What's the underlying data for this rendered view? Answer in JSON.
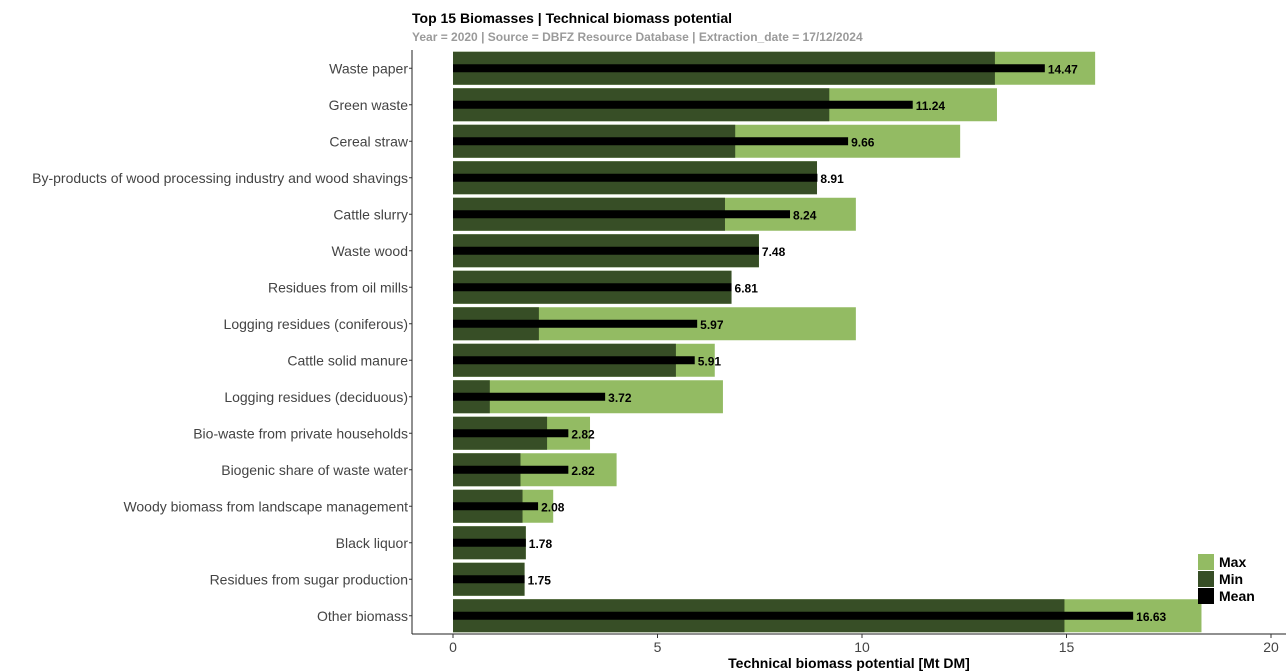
{
  "chart_data": {
    "type": "bar",
    "orientation": "horizontal",
    "title": "Top 15 Biomasses | Technical biomass potential",
    "subtitle": "Year = 2020 | Source = DBFZ Resource Database  | Extraction_date = 17/12/2024",
    "xlabel": "Technical biomass potential [Mt DM]",
    "xlim": [
      -1,
      20
    ],
    "xticks": [
      0,
      5,
      10,
      15,
      20
    ],
    "grid": false,
    "legend_position": "bottom-right",
    "categories": [
      "Waste paper",
      "Green waste",
      "Cereal straw",
      "By-products of wood processing industry and wood shavings",
      "Cattle slurry",
      "Waste wood",
      "Residues from oil mills",
      "Logging residues (coniferous)",
      "Cattle solid manure",
      "Logging residues (deciduous)",
      "Bio-waste from private households",
      "Biogenic share of waste water",
      "Woody biomass from landscape management",
      "Black liquor",
      "Residues from sugar production",
      "Other biomass"
    ],
    "series": [
      {
        "name": "Max",
        "color": "#93bb63",
        "values": [
          15.7,
          13.3,
          12.4,
          8.9,
          9.85,
          7.48,
          6.81,
          9.85,
          6.4,
          6.6,
          3.35,
          4.0,
          2.45,
          1.78,
          1.75,
          18.3
        ]
      },
      {
        "name": "Min",
        "color": "#374e26",
        "values": [
          13.25,
          9.2,
          6.9,
          8.9,
          6.65,
          7.48,
          6.81,
          2.1,
          5.45,
          0.9,
          2.3,
          1.65,
          1.7,
          1.78,
          1.75,
          14.95
        ]
      },
      {
        "name": "Mean",
        "color": "#000000",
        "values": [
          14.47,
          11.24,
          9.66,
          8.91,
          8.24,
          7.48,
          6.81,
          5.97,
          5.91,
          3.72,
          2.82,
          2.82,
          2.08,
          1.78,
          1.75,
          16.63
        ]
      }
    ],
    "mean_labels": [
      "14.47",
      "11.24",
      "9.66",
      "8.91",
      "8.24",
      "7.48",
      "6.81",
      "5.97",
      "5.91",
      "3.72",
      "2.82",
      "2.82",
      "2.08",
      "1.78",
      "1.75",
      "16.63"
    ]
  }
}
